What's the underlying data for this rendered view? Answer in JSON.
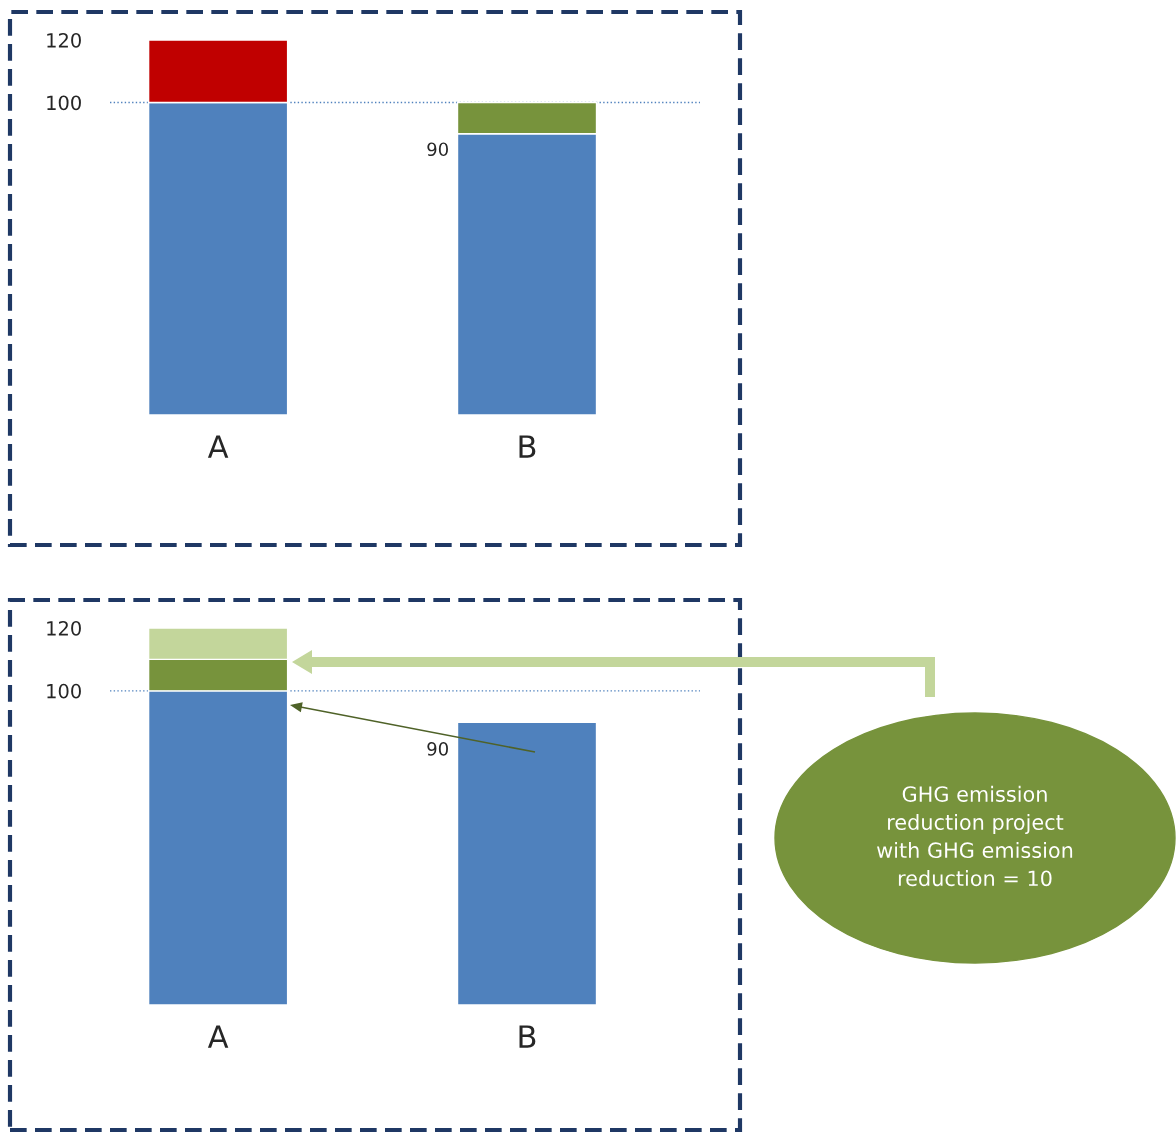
{
  "chart_data": [
    {
      "type": "bar",
      "stacked": true,
      "categories": [
        "A",
        "B"
      ],
      "ylim": [
        0,
        120
      ],
      "yticks": [
        100,
        120
      ],
      "grid": false,
      "series": [
        {
          "color": "#4f81bd",
          "values": [
            100,
            90
          ]
        },
        {
          "colors": [
            "#c00000",
            "#77933c"
          ],
          "values": [
            20,
            10
          ]
        }
      ],
      "ref_lines": [
        {
          "axis": "y",
          "value": 100,
          "color": "#4f81bd",
          "line_style": "dotted"
        }
      ],
      "annotations": [
        "90"
      ]
    },
    {
      "type": "bar",
      "stacked": true,
      "categories": [
        "A",
        "B"
      ],
      "ylim": [
        0,
        120
      ],
      "yticks": [
        100,
        120
      ],
      "grid": false,
      "series": [
        {
          "color": "#4f81bd",
          "values": [
            100,
            90
          ]
        },
        {
          "color": "#77933c",
          "values": [
            10,
            null
          ]
        },
        {
          "color": "#c3d69b",
          "values": [
            10,
            null
          ]
        }
      ],
      "ref_lines": [
        {
          "axis": "y",
          "value": 100,
          "color": "#4f81bd",
          "line_style": "dotted"
        }
      ],
      "annotations": [
        "90",
        "GHG emission\nreduction project\nwith GHG emission\nreduction = 10"
      ]
    }
  ]
}
